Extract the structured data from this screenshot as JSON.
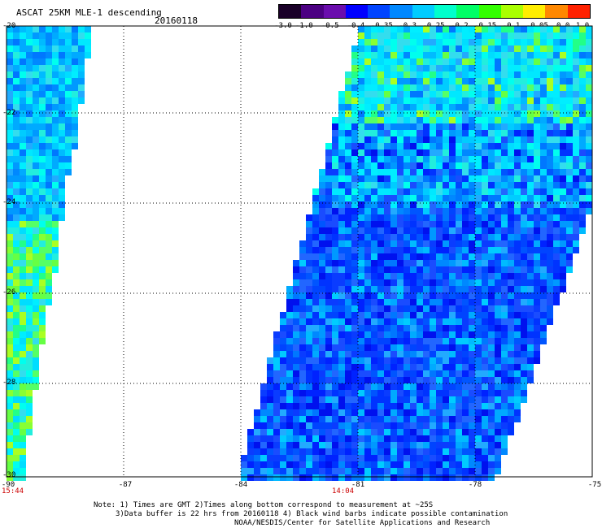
{
  "header": {
    "title": "ASCAT 25KM MLE-1 descending",
    "date": "20160118"
  },
  "colorbar": {
    "labels": [
      "-3.0",
      "-1.0",
      "-0.5",
      "-0.4",
      "-0.35",
      "-0.3",
      "-0.25",
      "-0.2",
      "-0.15",
      "-0.1",
      "-0.05",
      "0.0",
      "1.0"
    ],
    "colors": [
      "#1a0028",
      "#4b0082",
      "#6a0dad",
      "#0000ff",
      "#0044ff",
      "#0088ff",
      "#00ccff",
      "#00ffcc",
      "#00ff66",
      "#33ff00",
      "#aaff00",
      "#ffee00",
      "#ff8800",
      "#ff2200"
    ]
  },
  "axes": {
    "lat_labels": [
      "-20",
      "-22",
      "-24",
      "-26",
      "-28",
      "-30"
    ],
    "lon_labels": [
      "-90",
      "-87",
      "-84",
      "-81",
      "-78",
      "-75"
    ]
  },
  "times": {
    "left": "15:44",
    "center": "14:04"
  },
  "notes": {
    "line1": "Note: 1) Times are GMT 2)Times along bottom correspond to measurement at ~25S",
    "line2": "3)Data buffer is 22 hrs from 20160118 4) Black wind barbs indicate possible contamination",
    "line3": "NOAA/NESDIS/Center for Satellite Applications and Research"
  }
}
